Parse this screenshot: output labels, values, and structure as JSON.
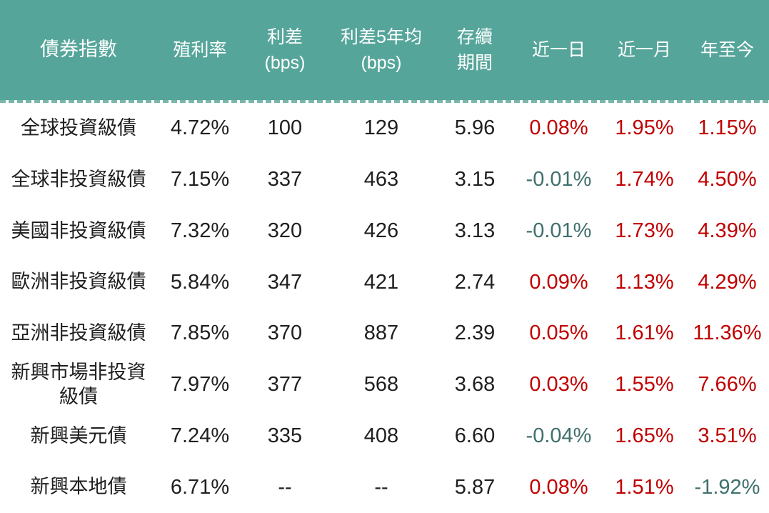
{
  "colors": {
    "header_bg": "#56a59a",
    "header_text": "#ffffff",
    "positive_change": "#c00000",
    "negative_change": "#3f706d",
    "body_text": "#1f1f1f"
  },
  "chart_data": {
    "type": "table",
    "headers": [
      "債券指數",
      "殖利率",
      "利差\n(bps)",
      "利差5年均\n(bps)",
      "存續\n期間",
      "近一日",
      "近一月",
      "年至今"
    ],
    "column_keys": [
      {
        "key": "index"
      },
      {
        "key": "yield"
      },
      {
        "key": "spread"
      },
      {
        "key": "spread5y"
      },
      {
        "key": "duration"
      },
      {
        "key": "d1",
        "change": true
      },
      {
        "key": "m1",
        "change": true
      },
      {
        "key": "ytd",
        "change": true
      }
    ],
    "rows": [
      [
        "全球投資級債",
        "4.72%",
        "100",
        "129",
        "5.96",
        "0.08%",
        "1.95%",
        "1.15%"
      ],
      [
        "全球非投資級債",
        "7.15%",
        "337",
        "463",
        "3.15",
        "-0.01%",
        "1.74%",
        "4.50%"
      ],
      [
        "美國非投資級債",
        "7.32%",
        "320",
        "426",
        "3.13",
        "-0.01%",
        "1.73%",
        "4.39%"
      ],
      [
        "歐洲非投資級債",
        "5.84%",
        "347",
        "421",
        "2.74",
        "0.09%",
        "1.13%",
        "4.29%"
      ],
      [
        "亞洲非投資級債",
        "7.85%",
        "370",
        "887",
        "2.39",
        "0.05%",
        "1.61%",
        "11.36%"
      ],
      [
        "新興市場非投資級債",
        "7.97%",
        "377",
        "568",
        "3.68",
        "0.03%",
        "1.55%",
        "7.66%"
      ],
      [
        "新興美元債",
        "7.24%",
        "335",
        "408",
        "6.60",
        "-0.04%",
        "1.65%",
        "3.51%"
      ],
      [
        "新興本地債",
        "6.71%",
        "--",
        "--",
        "5.87",
        "0.08%",
        "1.51%",
        "-1.92%"
      ]
    ]
  }
}
